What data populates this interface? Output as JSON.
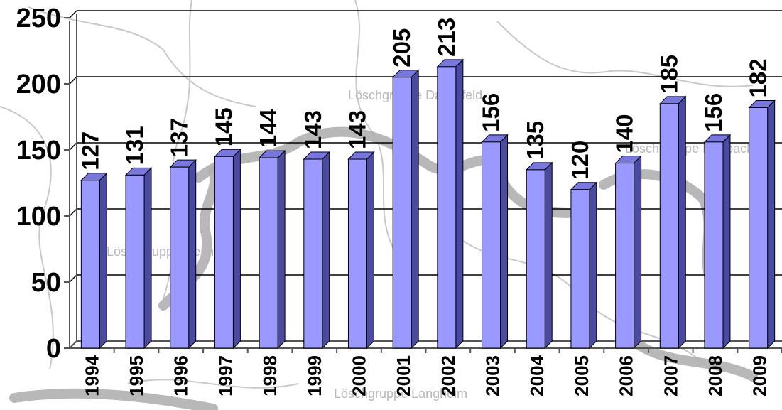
{
  "chart_data": {
    "type": "bar",
    "categories": [
      "1994",
      "1995",
      "1996",
      "1997",
      "1998",
      "1999",
      "2000",
      "2001",
      "2002",
      "2003",
      "2004",
      "2005",
      "2006",
      "2007",
      "2008",
      "2009"
    ],
    "values": [
      127,
      131,
      137,
      145,
      144,
      143,
      143,
      205,
      213,
      156,
      135,
      120,
      140,
      185,
      156,
      182
    ],
    "ylim": [
      0,
      250
    ],
    "yticks": [
      "0",
      "50",
      "100",
      "150",
      "200",
      "250"
    ],
    "grid": true,
    "legend": "none",
    "colors": {
      "front": "#9999ff",
      "side": "#4a4aa0",
      "top": "#7777dd"
    },
    "background_labels": [
      "Löschgruppe Dachsfeld",
      "Löschgruppe Rohbach",
      "Löschgruppe Heimer",
      "Löschgruppe Langheim"
    ]
  }
}
